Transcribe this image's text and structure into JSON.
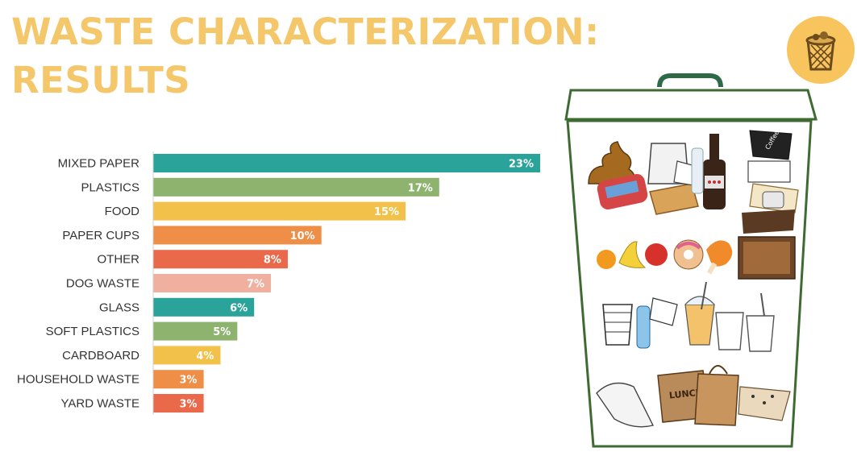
{
  "title": "WASTE CHARACTERIZATION:\nRESULTS",
  "colors": {
    "title": "#f4c76a",
    "badge": "#f7c45e",
    "bin_outline": "#3f6b33",
    "handle": "#2f6a46"
  },
  "icons": [
    "trash-basket-icon",
    "trash-bin-illustration"
  ],
  "bin_text": {
    "coffee_cup": "Coffee",
    "bag": "LUNCH"
  },
  "chart_data": {
    "type": "bar",
    "orientation": "horizontal",
    "categories": [
      "MIXED PAPER",
      "PLASTICS",
      "FOOD",
      "PAPER CUPS",
      "OTHER",
      "DOG WASTE",
      "GLASS",
      "SOFT PLASTICS",
      "CARDBOARD",
      "HOUSEHOLD WASTE",
      "YARD WASTE"
    ],
    "values": [
      23,
      17,
      15,
      10,
      8,
      7,
      6,
      5,
      4,
      3,
      3
    ],
    "value_labels": [
      "23%",
      "17%",
      "15%",
      "10%",
      "8%",
      "7%",
      "6%",
      "5%",
      "4%",
      "3%",
      "3%"
    ],
    "unit": "%",
    "bar_colors": [
      "#2aa39a",
      "#8db36e",
      "#f2c14a",
      "#ee8e47",
      "#e9694a",
      "#f0b0a0",
      "#2aa39a",
      "#8db36e",
      "#f2c14a",
      "#ee8e47",
      "#e9694a"
    ],
    "xlim": [
      0,
      23
    ],
    "grid": false,
    "legend": "none",
    "xlabel": "",
    "ylabel": ""
  }
}
